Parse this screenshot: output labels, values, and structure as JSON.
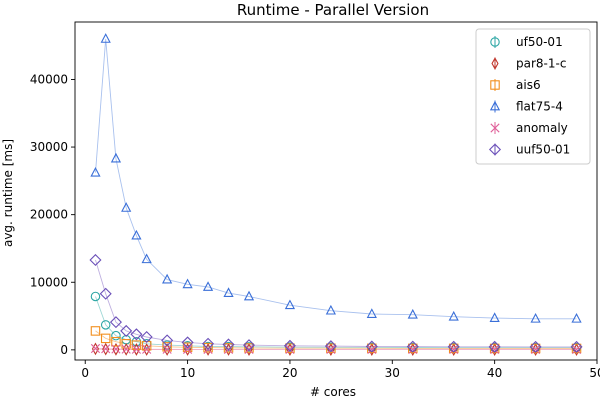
{
  "chart_data": {
    "type": "line",
    "title": "Runtime - Parallel Version",
    "xlabel": "# cores",
    "ylabel": "avg. runtime [ms]",
    "xlim": [
      -1,
      50
    ],
    "ylim": [
      -1500,
      48500
    ],
    "xticks": [
      0,
      10,
      20,
      30,
      40,
      50
    ],
    "yticks": [
      0,
      10000,
      20000,
      30000,
      40000
    ],
    "grid": false,
    "legend_position": "top-right",
    "x": [
      1,
      2,
      3,
      4,
      5,
      6,
      8,
      10,
      12,
      14,
      16,
      20,
      24,
      28,
      32,
      36,
      40,
      44,
      48
    ],
    "series": [
      {
        "name": "uf50-01",
        "marker": "circle",
        "color": "#2ca6a4",
        "line_color": "#9fd8d6",
        "values": [
          7900,
          3700,
          2100,
          1500,
          1200,
          900,
          700,
          600,
          500,
          480,
          450,
          400,
          380,
          360,
          350,
          340,
          340,
          330,
          330
        ]
      },
      {
        "name": "par8-1-c",
        "marker": "thin-diamond",
        "color": "#c0362c",
        "line_color": "#e8a09a",
        "values": [
          150,
          100,
          80,
          70,
          60,
          55,
          50,
          48,
          46,
          45,
          44,
          43,
          42,
          42,
          41,
          41,
          40,
          40,
          40
        ]
      },
      {
        "name": "ais6",
        "marker": "square",
        "color": "#f28e1c",
        "line_color": "#f8c590",
        "values": [
          2800,
          1700,
          1200,
          900,
          700,
          600,
          450,
          380,
          330,
          300,
          280,
          250,
          240,
          230,
          220,
          220,
          210,
          210,
          210
        ]
      },
      {
        "name": "flat75-4",
        "marker": "triangle-up",
        "color": "#3a6fd8",
        "line_color": "#a9c1ee",
        "values": [
          26200,
          46000,
          28300,
          21000,
          16900,
          13400,
          10400,
          9700,
          9300,
          8400,
          7900,
          6600,
          5800,
          5300,
          5200,
          4900,
          4700,
          4600,
          4600
        ]
      },
      {
        "name": "anomaly",
        "marker": "x",
        "color": "#e0609a",
        "line_color": "#f2b6d2",
        "values": [
          200,
          150,
          120,
          100,
          90,
          85,
          80,
          75,
          70,
          70,
          68,
          66,
          65,
          64,
          63,
          62,
          62,
          61,
          61
        ]
      },
      {
        "name": "uuf50-01",
        "marker": "diamond",
        "color": "#6a4fb8",
        "line_color": "#bfb0e0",
        "values": [
          13300,
          8300,
          4100,
          2800,
          2300,
          1900,
          1400,
          1100,
          900,
          800,
          700,
          600,
          550,
          500,
          480,
          460,
          450,
          440,
          440
        ]
      }
    ]
  }
}
